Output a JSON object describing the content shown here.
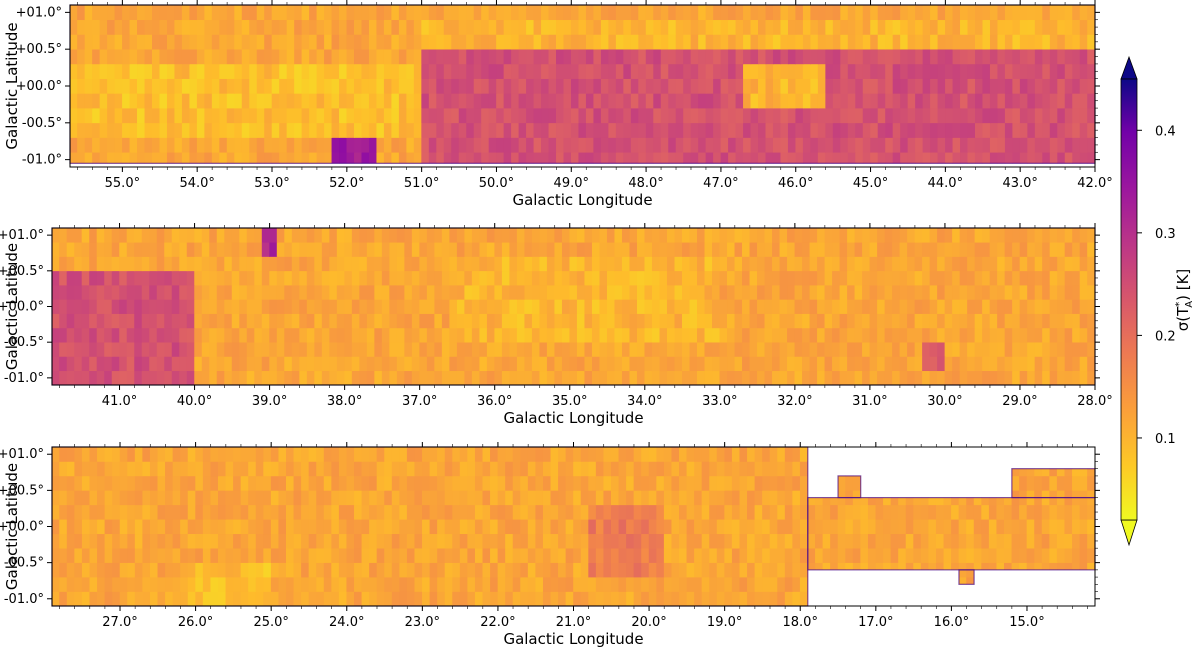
{
  "chart_data": [
    {
      "type": "heatmap",
      "panel": "top",
      "xlabel": "Galactic Longitude",
      "ylabel": "Galactic Latitude",
      "xlim": [
        55.7,
        42.0
      ],
      "ylim": [
        -1.1,
        1.1
      ],
      "x_ticks": [
        55.0,
        54.0,
        53.0,
        52.0,
        51.0,
        50.0,
        49.0,
        48.0,
        47.0,
        46.0,
        45.0,
        44.0,
        43.0,
        42.0
      ],
      "x_tick_labels": [
        "55.0°",
        "54.0°",
        "53.0°",
        "52.0°",
        "51.0°",
        "50.0°",
        "49.0°",
        "48.0°",
        "47.0°",
        "46.0°",
        "45.0°",
        "44.0°",
        "43.0°",
        "42.0°"
      ],
      "y_ticks": [
        1.0,
        0.5,
        0.0,
        -0.5,
        -1.0
      ],
      "y_tick_labels": [
        "+01.0°",
        "+00.5°",
        "+00.0°",
        "-00.5°",
        "-01.0°"
      ],
      "coverage": [
        [
          55.7,
          42.0,
          -1.05,
          1.1
        ]
      ],
      "regions": [
        {
          "l1": 51.0,
          "l2": 42.0,
          "b1": -1.0,
          "b2": 0.4,
          "value": 0.22
        },
        {
          "l1": 52.2,
          "l2": 51.6,
          "b1": -1.0,
          "b2": -0.4,
          "value": 0.3
        },
        {
          "l1": 55.7,
          "l2": 51.0,
          "b1": -0.8,
          "b2": 0.3,
          "value": 0.08
        },
        {
          "l1": 51.0,
          "l2": 42.0,
          "b1": 0.45,
          "b2": 0.9,
          "value": 0.09
        },
        {
          "l1": 46.7,
          "l2": 45.6,
          "b1": -0.4,
          "b2": 0.2,
          "value": 0.09
        }
      ]
    },
    {
      "type": "heatmap",
      "panel": "middle",
      "xlabel": "Galactic Longitude",
      "ylabel": "Galactic Latitude",
      "xlim": [
        41.9,
        28.0
      ],
      "ylim": [
        -1.1,
        1.1
      ],
      "x_ticks": [
        41.0,
        40.0,
        39.0,
        38.0,
        37.0,
        36.0,
        35.0,
        34.0,
        33.0,
        32.0,
        31.0,
        30.0,
        29.0,
        28.0
      ],
      "x_tick_labels": [
        "41.0°",
        "40.0°",
        "39.0°",
        "38.0°",
        "37.0°",
        "36.0°",
        "35.0°",
        "34.0°",
        "33.0°",
        "32.0°",
        "31.0°",
        "30.0°",
        "29.0°",
        "28.0°"
      ],
      "y_ticks": [
        1.0,
        0.5,
        0.0,
        -0.5,
        -1.0
      ],
      "y_tick_labels": [
        "+01.0°",
        "+00.5°",
        "+00.0°",
        "-00.5°",
        "-01.0°"
      ],
      "coverage": [
        [
          41.9,
          28.0,
          -1.1,
          1.1
        ]
      ],
      "regions": [
        {
          "l1": 41.9,
          "l2": 40.0,
          "b1": -1.0,
          "b2": 0.4,
          "value": 0.22
        },
        {
          "l1": 39.1,
          "l2": 38.9,
          "b1": 0.75,
          "b2": 1.1,
          "value": 0.28
        },
        {
          "l1": 30.3,
          "l2": 30.0,
          "b1": -0.9,
          "b2": -0.5,
          "value": 0.2
        },
        {
          "l1": 36.5,
          "l2": 33.0,
          "b1": -0.6,
          "b2": 0.6,
          "value": 0.09
        }
      ]
    },
    {
      "type": "heatmap",
      "panel": "bottom",
      "xlabel": "Galactic Longitude",
      "ylabel": "Galactic Latitude",
      "xlim": [
        27.9,
        14.1
      ],
      "ylim": [
        -1.1,
        1.1
      ],
      "x_ticks": [
        27.0,
        26.0,
        25.0,
        24.0,
        23.0,
        22.0,
        21.0,
        20.0,
        19.0,
        18.0,
        17.0,
        16.0,
        15.0
      ],
      "x_tick_labels": [
        "27.0°",
        "26.0°",
        "25.0°",
        "24.0°",
        "23.0°",
        "22.0°",
        "21.0°",
        "20.0°",
        "19.0°",
        "18.0°",
        "17.0°",
        "16.0°",
        "15.0°"
      ],
      "y_ticks": [
        1.0,
        0.5,
        0.0,
        -0.5,
        -1.0
      ],
      "y_tick_labels": [
        "+01.0°",
        "+00.5°",
        "+00.0°",
        "-00.5°",
        "-01.0°"
      ],
      "coverage": [
        [
          27.9,
          17.9,
          -1.1,
          1.1
        ],
        [
          17.9,
          14.1,
          -0.6,
          0.4
        ],
        [
          17.5,
          17.2,
          0.4,
          0.7
        ],
        [
          15.9,
          15.7,
          -0.8,
          -0.6
        ],
        [
          15.2,
          14.1,
          0.4,
          0.8
        ]
      ],
      "regions": [
        {
          "l1": 26.2,
          "l2": 25.0,
          "b1": -1.1,
          "b2": -0.5,
          "value": 0.08
        },
        {
          "l1": 20.8,
          "l2": 19.8,
          "b1": -0.7,
          "b2": 0.3,
          "value": 0.16
        }
      ]
    }
  ],
  "colorbar": {
    "label": "σ(T_A*) [K]",
    "ticks": [
      0.1,
      0.2,
      0.3,
      0.4
    ],
    "tick_labels": [
      "0.1",
      "0.2",
      "0.3",
      "0.4"
    ],
    "vmin": 0.02,
    "vmax": 0.45,
    "colormap": "plasma_r",
    "extend": "both"
  }
}
